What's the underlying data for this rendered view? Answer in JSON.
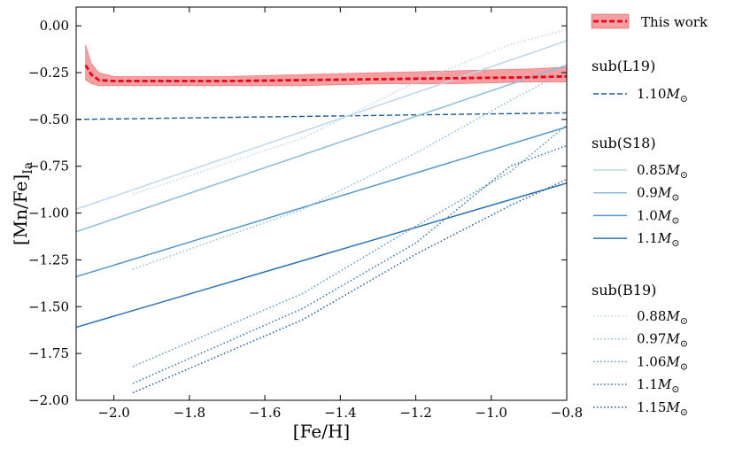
{
  "chart_data": {
    "type": "line",
    "xlabel": "[Fe/H]",
    "ylabel": "[Mn/Fe]",
    "ylabel_subscript": "Ia",
    "xlim": [
      -2.1,
      -0.8
    ],
    "ylim": [
      -2.0,
      0.1
    ],
    "grid": false,
    "legend_position": "outside-right",
    "x_ticks": [
      {
        "value": -2.0,
        "label": "−2.0"
      },
      {
        "value": -1.8,
        "label": "−1.8"
      },
      {
        "value": -1.6,
        "label": "−1.6"
      },
      {
        "value": -1.4,
        "label": "−1.4"
      },
      {
        "value": -1.2,
        "label": "−1.2"
      },
      {
        "value": -1.0,
        "label": "−1.0"
      },
      {
        "value": -0.8,
        "label": "−0.8"
      }
    ],
    "y_ticks": [
      {
        "value": 0.0,
        "label": "0.00"
      },
      {
        "value": -0.25,
        "label": "−0.25"
      },
      {
        "value": -0.5,
        "label": "−0.50"
      },
      {
        "value": -0.75,
        "label": "−0.75"
      },
      {
        "value": -1.0,
        "label": "−1.00"
      },
      {
        "value": -1.25,
        "label": "−1.25"
      },
      {
        "value": -1.5,
        "label": "−1.50"
      },
      {
        "value": -1.75,
        "label": "−1.75"
      },
      {
        "value": -2.0,
        "label": "−2.00"
      }
    ],
    "band": {
      "color": "#f08080",
      "x": [
        -2.075,
        -2.06,
        -2.04,
        -2.0,
        -1.9,
        -1.7,
        -1.5,
        -1.3,
        -1.1,
        -0.9,
        -0.8
      ],
      "upper": [
        -0.1,
        -0.2,
        -0.25,
        -0.27,
        -0.27,
        -0.27,
        -0.26,
        -0.25,
        -0.24,
        -0.23,
        -0.22
      ],
      "lower": [
        -0.29,
        -0.31,
        -0.32,
        -0.32,
        -0.32,
        -0.32,
        -0.32,
        -0.31,
        -0.31,
        -0.3,
        -0.3
      ]
    },
    "series": [
      {
        "name": "This work",
        "group": "",
        "mass": "",
        "color": "#e8001c",
        "dash": "dashed",
        "width": 2.8,
        "x": [
          -2.075,
          -2.06,
          -2.04,
          -2.0,
          -1.9,
          -1.7,
          -1.5,
          -1.3,
          -1.1,
          -0.9,
          -0.8
        ],
        "y": [
          -0.21,
          -0.26,
          -0.29,
          -0.295,
          -0.295,
          -0.295,
          -0.29,
          -0.285,
          -0.28,
          -0.275,
          -0.27
        ]
      },
      {
        "name": "",
        "group": "L19",
        "mass": "1.10",
        "color": "#1c5c9e",
        "dash": "dashed",
        "width": 1.4,
        "x": [
          -2.1,
          -0.8
        ],
        "y": [
          -0.5,
          -0.465
        ]
      },
      {
        "name": "",
        "group": "S18",
        "mass": "0.85",
        "color": "#bdd7ec",
        "dash": "solid",
        "width": 1.5,
        "x": [
          -2.1,
          -0.8
        ],
        "y": [
          -0.98,
          -0.08
        ]
      },
      {
        "name": "",
        "group": "S18",
        "mass": "0.9",
        "color": "#8bbcdc",
        "dash": "solid",
        "width": 1.5,
        "x": [
          -2.1,
          -0.8
        ],
        "y": [
          -1.1,
          -0.21
        ]
      },
      {
        "name": "",
        "group": "S18",
        "mass": "1.0",
        "color": "#5497c8",
        "dash": "solid",
        "width": 1.5,
        "x": [
          -2.1,
          -0.8
        ],
        "y": [
          -1.34,
          -0.54
        ]
      },
      {
        "name": "",
        "group": "S18",
        "mass": "1.1",
        "color": "#2b73b2",
        "dash": "solid",
        "width": 1.5,
        "x": [
          -2.1,
          -0.8
        ],
        "y": [
          -1.61,
          -0.84
        ]
      },
      {
        "name": "",
        "group": "B19",
        "mass": "0.88",
        "color": "#bdd7ec",
        "dash": "dotted",
        "width": 1.5,
        "x": [
          -1.95,
          -1.5,
          -1.2,
          -0.95,
          -0.8
        ],
        "y": [
          -0.9,
          -0.6,
          -0.3,
          -0.1,
          -0.02
        ]
      },
      {
        "name": "",
        "group": "B19",
        "mass": "0.97",
        "color": "#8bbcdc",
        "dash": "dotted",
        "width": 1.5,
        "x": [
          -1.95,
          -1.5,
          -1.2,
          -0.95,
          -0.8
        ],
        "y": [
          -1.3,
          -0.98,
          -0.68,
          -0.4,
          -0.24
        ]
      },
      {
        "name": "",
        "group": "B19",
        "mass": "1.06",
        "color": "#5497c8",
        "dash": "dotted",
        "width": 1.5,
        "x": [
          -1.95,
          -1.5,
          -1.2,
          -0.95,
          -0.8
        ],
        "y": [
          -1.82,
          -1.43,
          -1.07,
          -0.78,
          -0.53
        ]
      },
      {
        "name": "",
        "group": "B19",
        "mass": "1.1",
        "color": "#2b73b2",
        "dash": "dotted",
        "width": 1.5,
        "x": [
          -1.95,
          -1.5,
          -1.2,
          -0.95,
          -0.8
        ],
        "y": [
          -1.91,
          -1.51,
          -1.16,
          -0.75,
          -0.64
        ]
      },
      {
        "name": "",
        "group": "B19",
        "mass": "1.15",
        "color": "#1a5a96",
        "dash": "dotted",
        "width": 1.5,
        "x": [
          -1.95,
          -1.5,
          -1.2,
          -0.95,
          -0.8
        ],
        "y": [
          -1.96,
          -1.57,
          -1.22,
          -0.96,
          -0.82
        ]
      }
    ]
  },
  "legend": {
    "this_work": "This work",
    "groups": [
      {
        "header": "sub(L19)",
        "entries": [
          {
            "value": "1.10",
            "unit": "M",
            "sub": "⊙",
            "color": "#1c5c9e",
            "dash": "dashed"
          }
        ]
      },
      {
        "header": "sub(S18)",
        "entries": [
          {
            "value": "0.85",
            "unit": "M",
            "sub": "⊙",
            "color": "#bdd7ec",
            "dash": "solid"
          },
          {
            "value": "0.9",
            "unit": "M",
            "sub": "⊙",
            "color": "#8bbcdc",
            "dash": "solid"
          },
          {
            "value": "1.0",
            "unit": "M",
            "sub": "⊙",
            "color": "#5497c8",
            "dash": "solid"
          },
          {
            "value": "1.1",
            "unit": "M",
            "sub": "⊙",
            "color": "#2b73b2",
            "dash": "solid"
          }
        ]
      },
      {
        "header": "sub(B19)",
        "entries": [
          {
            "value": "0.88",
            "unit": "M",
            "sub": "⊙",
            "color": "#bdd7ec",
            "dash": "dotted"
          },
          {
            "value": "0.97",
            "unit": "M",
            "sub": "⊙",
            "color": "#8bbcdc",
            "dash": "dotted"
          },
          {
            "value": "1.06",
            "unit": "M",
            "sub": "⊙",
            "color": "#5497c8",
            "dash": "dotted"
          },
          {
            "value": "1.1",
            "unit": "M",
            "sub": "⊙",
            "color": "#2b73b2",
            "dash": "dotted"
          },
          {
            "value": "1.15",
            "unit": "M",
            "sub": "⊙",
            "color": "#1a5a96",
            "dash": "dotted"
          }
        ]
      }
    ]
  }
}
